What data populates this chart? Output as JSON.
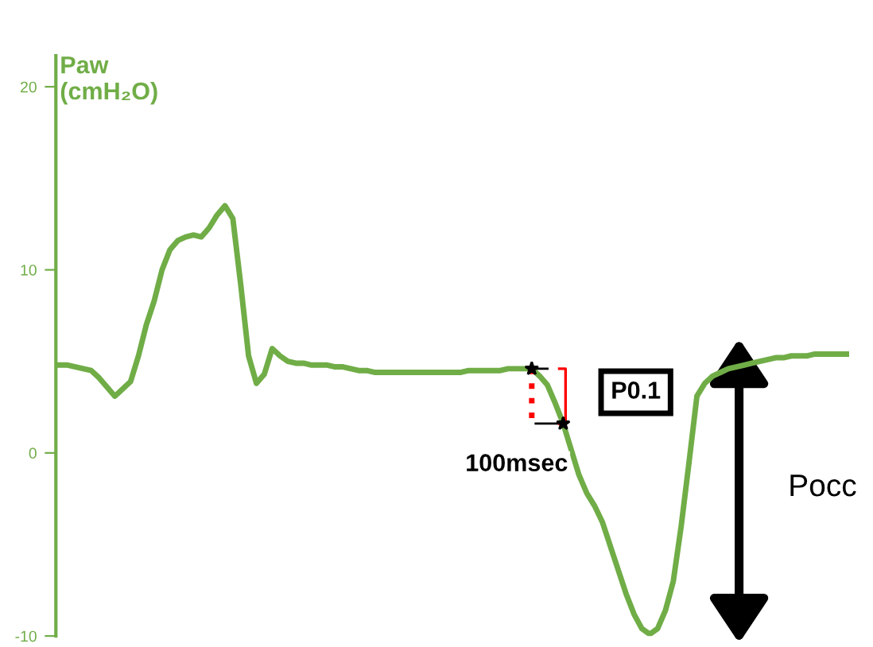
{
  "chart_data": {
    "type": "line",
    "ylabel": "Paw\n(cmH₂O)",
    "categories": [
      null,
      null,
      null,
      null,
      null,
      null,
      null,
      null,
      null,
      null,
      null,
      null,
      null,
      null,
      null,
      null,
      null,
      null,
      null,
      null,
      null,
      null,
      null,
      null,
      null,
      null,
      null,
      null,
      null,
      null,
      null,
      null,
      null,
      null,
      null,
      null,
      null,
      null,
      null,
      null,
      null,
      null,
      null,
      null,
      null,
      null,
      null,
      null,
      null,
      null,
      null,
      null,
      null,
      null,
      null,
      null,
      null,
      null,
      null,
      null,
      null,
      null,
      null,
      null,
      null,
      null,
      null,
      null,
      null,
      null,
      null,
      null,
      null,
      null,
      null,
      null,
      null,
      null,
      null,
      null,
      null,
      null,
      null,
      null,
      null,
      null,
      null,
      null,
      null,
      null,
      null,
      null,
      null,
      null,
      null,
      null,
      null,
      null,
      null,
      null,
      null
    ],
    "series": [
      {
        "color": "#70ad47",
        "values": [
          4.8,
          4.8,
          4.7,
          4.6,
          4.5,
          4.1,
          3.6,
          3.1,
          3.5,
          3.9,
          5.3,
          7.0,
          8.3,
          10.0,
          11.1,
          11.6,
          11.8,
          11.9,
          11.8,
          12.3,
          13.0,
          13.5,
          12.8,
          9.2,
          5.3,
          3.8,
          4.3,
          5.7,
          5.3,
          5.0,
          4.9,
          4.9,
          4.8,
          4.8,
          4.8,
          4.7,
          4.7,
          4.6,
          4.5,
          4.5,
          4.4,
          4.4,
          4.4,
          4.4,
          4.4,
          4.4,
          4.4,
          4.4,
          4.4,
          4.4,
          4.4,
          4.4,
          4.5,
          4.5,
          4.5,
          4.5,
          4.5,
          4.6,
          4.6,
          4.6,
          4.6,
          4.2,
          3.7,
          2.7,
          1.6,
          0.2,
          -1.2,
          -2.2,
          -2.9,
          -3.8,
          -5.1,
          -6.4,
          -7.7,
          -8.8,
          -9.6,
          -9.9,
          -9.6,
          -8.6,
          -7.0,
          -4.0,
          -0.5,
          3.1,
          3.8,
          4.2,
          4.4,
          4.6,
          4.7,
          4.8,
          4.9,
          5.0,
          5.1,
          5.2,
          5.2,
          5.3,
          5.3,
          5.3,
          5.4,
          5.4,
          5.4,
          5.4,
          5.4
        ]
      }
    ],
    "ylim": [
      -10,
      21.7
    ],
    "yticks": [
      -10,
      0,
      10,
      20
    ],
    "tick_labels": "y",
    "grid": false,
    "legend": false,
    "marker": "none",
    "line_style": "solid",
    "annotations": [
      "P0.1",
      "100msec",
      "Pocc"
    ]
  }
}
